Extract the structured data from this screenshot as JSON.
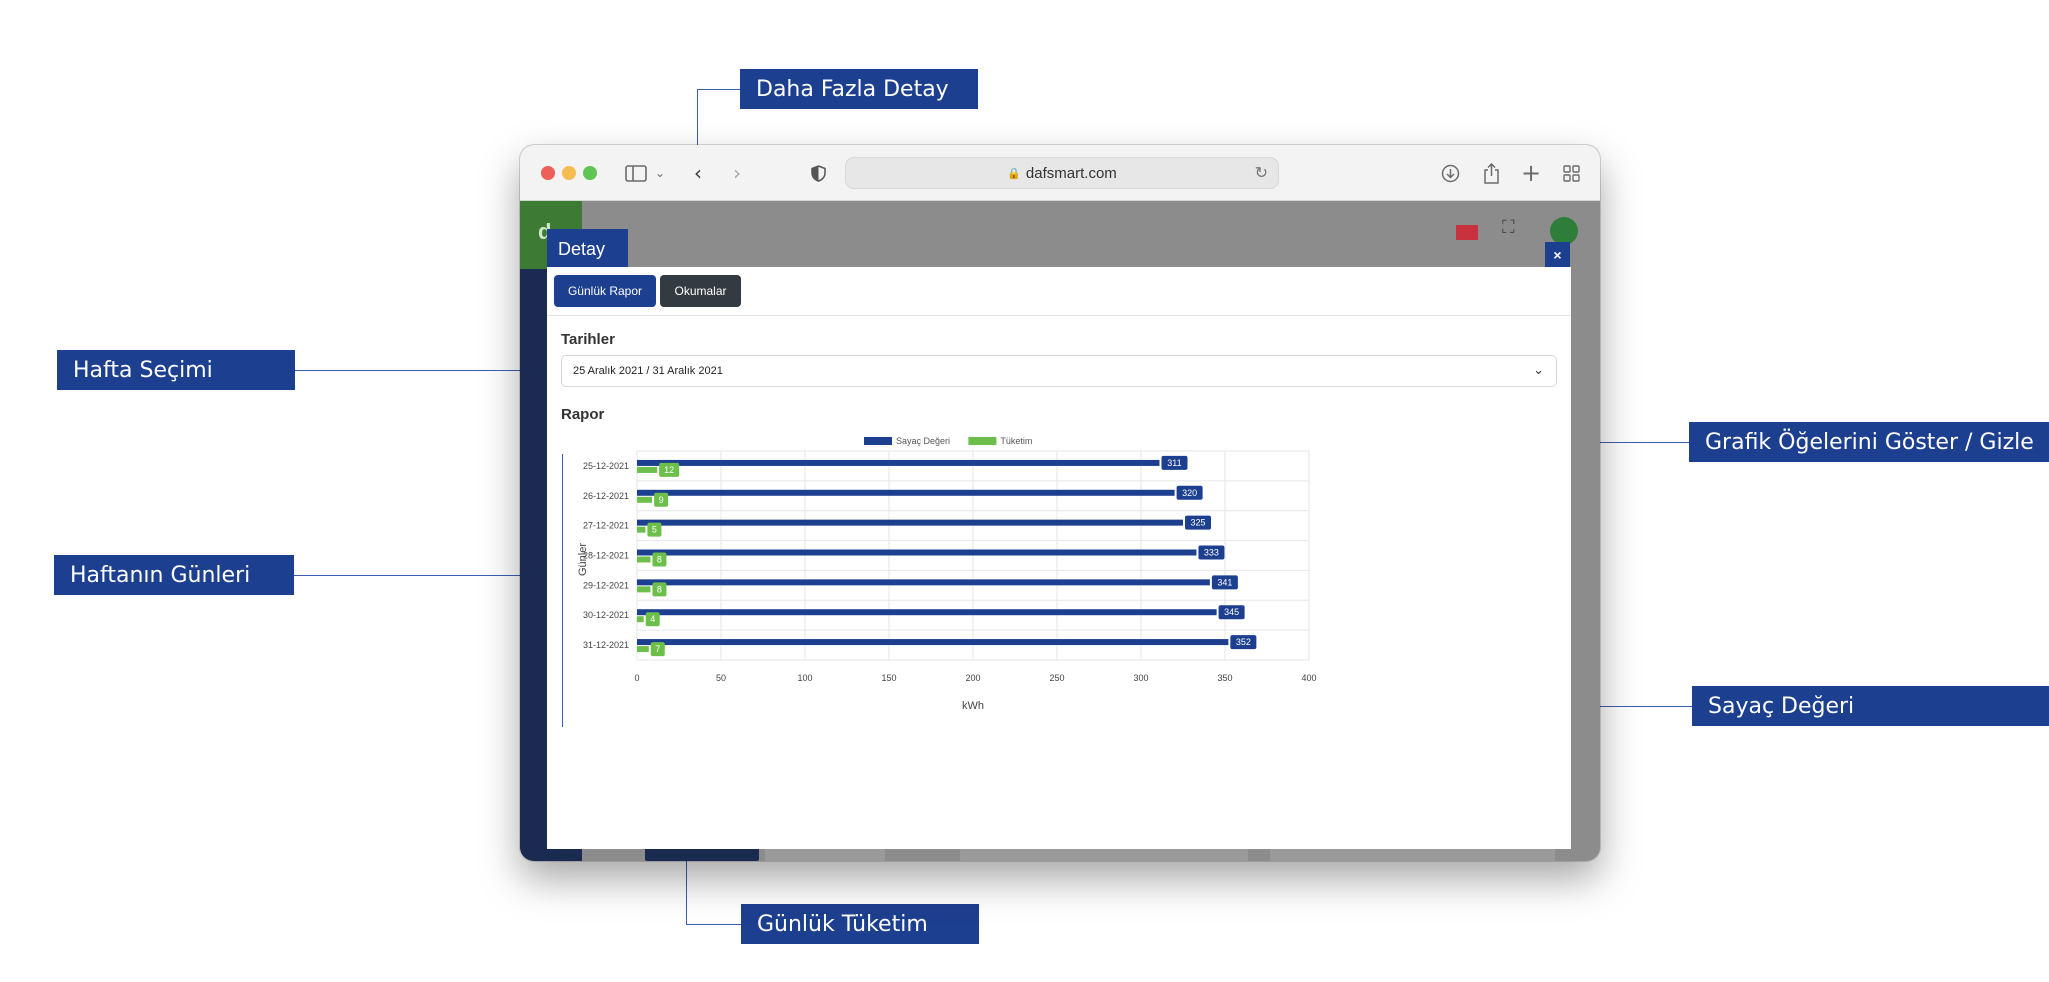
{
  "annotations": {
    "more_detail": "Daha Fazla Detay",
    "week_selection": "Hafta Seçimi",
    "days_of_week": "Haftanın Günleri",
    "toggle_chart_items": "Grafik Öğelerini Göster / Gizle",
    "meter_value": "Sayaç Değeri",
    "daily_consumption": "Günlük Tüketim"
  },
  "browser": {
    "url": "dafsmart.com"
  },
  "app": {
    "logo_text": "d"
  },
  "modal": {
    "title": "Detay",
    "close_label": "×",
    "tabs": [
      "Günlük Rapor",
      "Okumalar"
    ],
    "dates_label": "Tarihler",
    "selected_range": "25 Aralık 2021 / 31 Aralık 2021",
    "report_label": "Rapor"
  },
  "colors": {
    "primary": "#1d3f8f",
    "green": "#6cbf4a",
    "dark_button": "#333a40"
  },
  "chart_data": {
    "type": "bar",
    "orientation": "horizontal",
    "categories": [
      "25-12-2021",
      "26-12-2021",
      "27-12-2021",
      "28-12-2021",
      "29-12-2021",
      "30-12-2021",
      "31-12-2021"
    ],
    "series": [
      {
        "name": "Sayaç Değeri",
        "values": [
          311,
          320,
          325,
          333,
          341,
          345,
          352
        ],
        "color": "#1d3f8f"
      },
      {
        "name": "Tüketim",
        "values": [
          12,
          9,
          5,
          8,
          8,
          4,
          7
        ],
        "color": "#6cbf4a"
      }
    ],
    "xlabel": "kWh",
    "ylabel": "Günler",
    "xlim": [
      0,
      400
    ],
    "xticks": [
      0,
      50,
      100,
      150,
      200,
      250,
      300,
      350,
      400
    ],
    "grid": true,
    "legend_position": "top-center",
    "data_labels": true
  }
}
